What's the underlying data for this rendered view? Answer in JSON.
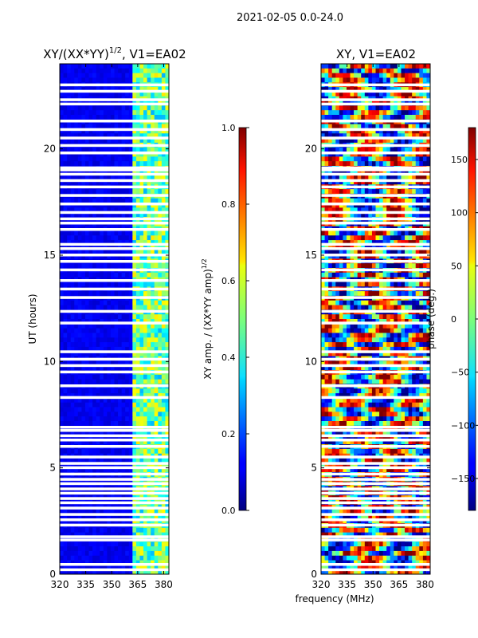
{
  "figure": {
    "suptitle": "2021-02-05 0.0-24.0",
    "shared_xlabel": "frequency (MHz)",
    "shared_ylabel": "UT (hours)"
  },
  "chart_data": [
    {
      "type": "heatmap",
      "title": "XY/(XX*YY)^{1/2}, V1=EA02",
      "title_main": "XY/(XX*YY)",
      "title_sup": "1/2",
      "title_tail": ", V1=EA02",
      "xlabel": "frequency (MHz)",
      "ylabel": "UT (hours)",
      "xlim": [
        320,
        383
      ],
      "ylim": [
        0,
        24
      ],
      "xticks": [
        320,
        335,
        350,
        365,
        380
      ],
      "yticks": [
        0,
        5,
        10,
        15,
        20
      ],
      "colormap": "jet",
      "colorbar": {
        "label": "XY amp. / (XX*YY amp)^{1/2}",
        "label_main": "XY amp. / (XX*YY amp)",
        "label_sup": "1/2",
        "range": [
          0.0,
          1.0
        ],
        "ticks": [
          "0.0",
          "0.2",
          "0.4",
          "0.6",
          "0.8",
          "1.0"
        ],
        "tick_values": [
          0.0,
          0.2,
          0.4,
          0.6,
          0.8,
          1.0
        ]
      },
      "features": {
        "background_level": 0.08,
        "bright_band_mhz": [
          360,
          383
        ],
        "bright_band_level": 0.45
      }
    },
    {
      "type": "heatmap",
      "title": "XY, V1=EA02",
      "xlabel": "frequency (MHz)",
      "ylabel": "UT (hours)",
      "xlim": [
        320,
        383
      ],
      "ylim": [
        0,
        24
      ],
      "xticks": [
        320,
        335,
        350,
        365,
        380
      ],
      "yticks": [
        0,
        5,
        10,
        15,
        20
      ],
      "colormap": "jet",
      "colorbar": {
        "label": "phase (deg.)",
        "range": [
          -180,
          180
        ],
        "ticks": [
          "−150",
          "−100",
          "−50",
          "0",
          "50",
          "100",
          "150"
        ],
        "tick_values": [
          -150,
          -100,
          -50,
          0,
          50,
          100,
          150
        ]
      }
    }
  ],
  "flagged_ut_hours": [
    0.2,
    0.45,
    1.6,
    1.75,
    2.3,
    2.55,
    2.8,
    3.1,
    3.35,
    3.55,
    3.8,
    4.0,
    4.25,
    4.45,
    4.7,
    5.0,
    5.2,
    5.5,
    6.0,
    6.3,
    6.5,
    6.75,
    6.9,
    8.3,
    8.85,
    9.5,
    9.8,
    10.1,
    10.45,
    11.8,
    12.35,
    13.0,
    13.4,
    13.8,
    14.3,
    14.7,
    15.0,
    15.3,
    15.5,
    16.2,
    16.5,
    16.7,
    17.0,
    17.4,
    17.8,
    18.2,
    18.5,
    18.8,
    19.0,
    19.1,
    19.8,
    20.15,
    20.5,
    20.9,
    21.3,
    22.1,
    22.3,
    22.7,
    23.0
  ]
}
